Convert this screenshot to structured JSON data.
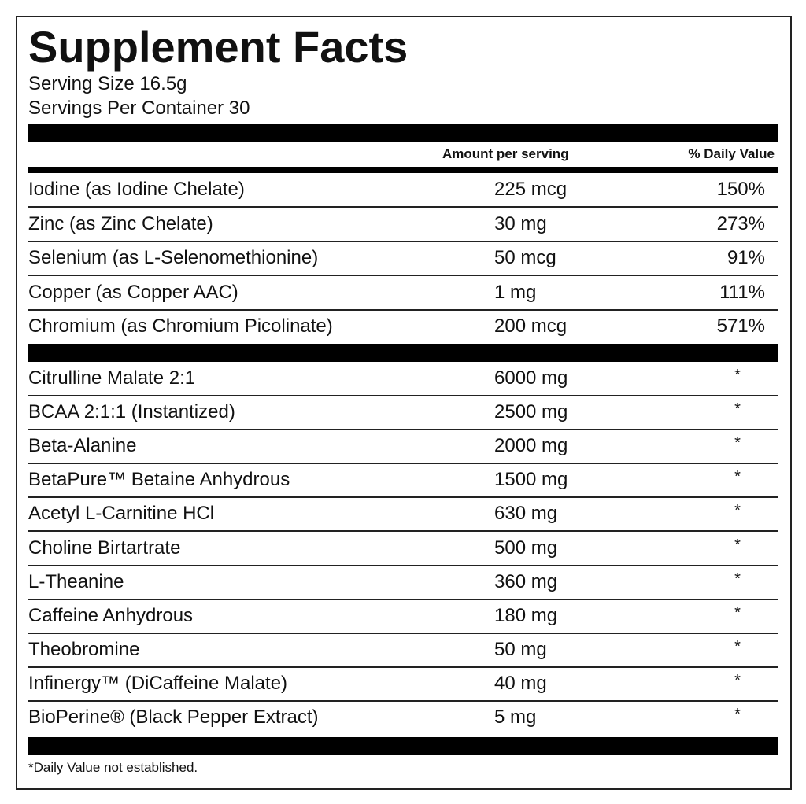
{
  "title": "Supplement Facts",
  "serving_size": "Serving Size 16.5g",
  "servings_per_container": "Servings Per Container 30",
  "header": {
    "amount": "Amount per serving",
    "daily_value": "% Daily Value"
  },
  "minerals": [
    {
      "name": "Iodine (as Iodine Chelate)",
      "amount": "225 mcg",
      "daily_value": "150%"
    },
    {
      "name": "Zinc (as Zinc Chelate)",
      "amount": "30 mg",
      "daily_value": "273%"
    },
    {
      "name": "Selenium (as L-Selenomethionine)",
      "amount": "50 mcg",
      "daily_value": "91%"
    },
    {
      "name": "Copper (as Copper AAC)",
      "amount": "1 mg",
      "daily_value": "111%"
    },
    {
      "name": "Chromium (as Chromium Picolinate)",
      "amount": "200 mcg",
      "daily_value": "571%"
    }
  ],
  "ingredients": [
    {
      "name": "Citrulline Malate 2:1",
      "amount": "6000 mg",
      "daily_value": "*"
    },
    {
      "name": "BCAA 2:1:1 (Instantized)",
      "amount": "2500 mg",
      "daily_value": "*"
    },
    {
      "name": "Beta-Alanine",
      "amount": "2000 mg",
      "daily_value": "*"
    },
    {
      "name": "BetaPure™ Betaine Anhydrous",
      "amount": "1500 mg",
      "daily_value": "*"
    },
    {
      "name": "Acetyl L-Carnitine HCl",
      "amount": "630 mg",
      "daily_value": "*"
    },
    {
      "name": "Choline Birtartrate",
      "amount": "500 mg",
      "daily_value": "*"
    },
    {
      "name": "L-Theanine",
      "amount": "360 mg",
      "daily_value": "*"
    },
    {
      "name": "Caffeine Anhydrous",
      "amount": "180 mg",
      "daily_value": "*"
    },
    {
      "name": "Theobromine",
      "amount": "50 mg",
      "daily_value": "*"
    },
    {
      "name": "Infinergy™ (DiCaffeine Malate)",
      "amount": "40 mg",
      "daily_value": "*"
    },
    {
      "name": "BioPerine® (Black Pepper Extract)",
      "amount": "5 mg",
      "daily_value": "*"
    }
  ],
  "footnote": "*Daily Value not established."
}
